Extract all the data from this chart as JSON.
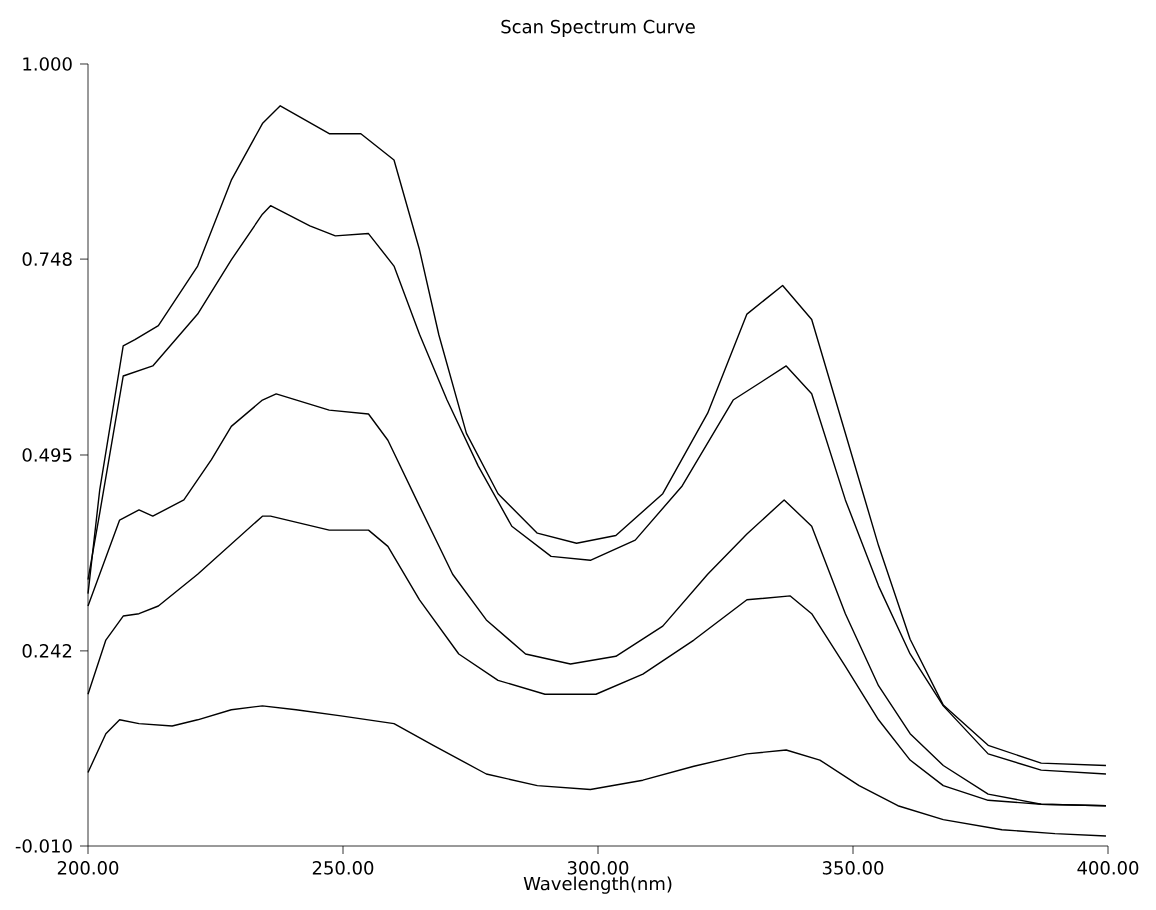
{
  "chart_data": {
    "type": "line",
    "title": "Scan Spectrum Curve",
    "xlabel": "Wavelength(nm)",
    "xlim": [
      200,
      400
    ],
    "ylim": [
      -0.01,
      1.0
    ],
    "xticks": [
      {
        "value": 200,
        "label": "200.00"
      },
      {
        "value": 250,
        "label": "250.00"
      },
      {
        "value": 300,
        "label": "300.00"
      },
      {
        "value": 350,
        "label": "350.00"
      },
      {
        "value": 400,
        "label": "400.00"
      }
    ],
    "yticks": [
      {
        "value": -0.01,
        "label": "-0.010"
      },
      {
        "value": 0.242,
        "label": "0.242"
      },
      {
        "value": 0.495,
        "label": "0.495"
      },
      {
        "value": 0.748,
        "label": "0.748"
      },
      {
        "value": 1.0,
        "label": "1.000"
      }
    ],
    "series": [
      {
        "color": "#000000",
        "x": [
          200,
          202.3,
          206.9,
          209.2,
          213.8,
          221.5,
          228.1,
          234.2,
          237.7,
          247.3,
          253.5,
          260,
          265,
          268.8,
          274.2,
          280.4,
          288.1,
          295.8,
          303.5,
          312.7,
          321.5,
          329.2,
          336.2,
          341.9,
          348.5,
          355,
          361.2,
          367.7,
          376.5,
          386.9,
          399.6
        ],
        "values": [
          0.316,
          0.45,
          0.636,
          0.644,
          0.662,
          0.739,
          0.85,
          0.923,
          0.946,
          0.91,
          0.91,
          0.876,
          0.76,
          0.65,
          0.523,
          0.445,
          0.394,
          0.381,
          0.391,
          0.445,
          0.549,
          0.677,
          0.714,
          0.67,
          0.523,
          0.378,
          0.257,
          0.172,
          0.12,
          0.097,
          0.094
        ]
      },
      {
        "color": "#000000",
        "x": [
          200,
          202.3,
          206.9,
          212.7,
          221.5,
          228.1,
          234.2,
          235.8,
          243.5,
          248.5,
          255,
          260,
          265,
          270.4,
          276.5,
          283.1,
          290.8,
          298.5,
          307.3,
          316.5,
          326.5,
          336.9,
          341.9,
          348.5,
          355,
          361.2,
          367.7,
          376.5,
          386.9,
          399.6
        ],
        "values": [
          0.334,
          0.42,
          0.597,
          0.61,
          0.677,
          0.747,
          0.806,
          0.817,
          0.791,
          0.778,
          0.781,
          0.739,
          0.651,
          0.566,
          0.481,
          0.403,
          0.364,
          0.359,
          0.385,
          0.455,
          0.566,
          0.61,
          0.574,
          0.437,
          0.326,
          0.238,
          0.171,
          0.109,
          0.088,
          0.083
        ]
      },
      {
        "color": "#000000",
        "x": [
          200,
          206.2,
          210,
          212.7,
          218.8,
          224.2,
          228.1,
          234.2,
          236.9,
          247.3,
          255,
          258.8,
          265,
          271.5,
          278.1,
          285.8,
          294.6,
          303.5,
          312.7,
          321.5,
          329.2,
          336.5,
          341.9,
          348.5,
          355,
          361.2,
          367.7,
          376.5,
          386.9,
          399.6
        ],
        "values": [
          0.3,
          0.411,
          0.424,
          0.416,
          0.437,
          0.489,
          0.532,
          0.566,
          0.574,
          0.553,
          0.548,
          0.514,
          0.429,
          0.341,
          0.282,
          0.238,
          0.225,
          0.235,
          0.274,
          0.341,
          0.393,
          0.437,
          0.403,
          0.29,
          0.197,
          0.135,
          0.094,
          0.057,
          0.044,
          0.042
        ]
      },
      {
        "color": "#000000",
        "x": [
          200,
          203.5,
          206.9,
          210,
          213.8,
          221.5,
          234.2,
          235.8,
          247.3,
          255,
          258.8,
          265,
          272.7,
          280.4,
          289.6,
          299.6,
          308.8,
          318.8,
          329.2,
          337.7,
          341.9,
          348.5,
          355,
          361.2,
          367.7,
          376.5,
          386.9,
          399.6
        ],
        "values": [
          0.186,
          0.256,
          0.287,
          0.29,
          0.3,
          0.341,
          0.416,
          0.416,
          0.398,
          0.398,
          0.377,
          0.308,
          0.238,
          0.204,
          0.186,
          0.186,
          0.212,
          0.256,
          0.308,
          0.313,
          0.29,
          0.222,
          0.153,
          0.101,
          0.068,
          0.049,
          0.044,
          0.042
        ]
      },
      {
        "color": "#000000",
        "x": [
          200,
          203.5,
          206.2,
          210,
          216.5,
          221.5,
          228.1,
          234.2,
          240.8,
          249.6,
          260,
          267.7,
          278.1,
          288.1,
          298.5,
          308.8,
          318.8,
          329.2,
          336.9,
          343.5,
          351.2,
          358.8,
          367.7,
          379.2,
          389.6,
          399.6
        ],
        "values": [
          0.085,
          0.135,
          0.153,
          0.148,
          0.145,
          0.153,
          0.166,
          0.171,
          0.166,
          0.158,
          0.148,
          0.12,
          0.083,
          0.068,
          0.063,
          0.075,
          0.093,
          0.109,
          0.114,
          0.101,
          0.068,
          0.042,
          0.024,
          0.011,
          0.006,
          0.003
        ]
      }
    ]
  }
}
